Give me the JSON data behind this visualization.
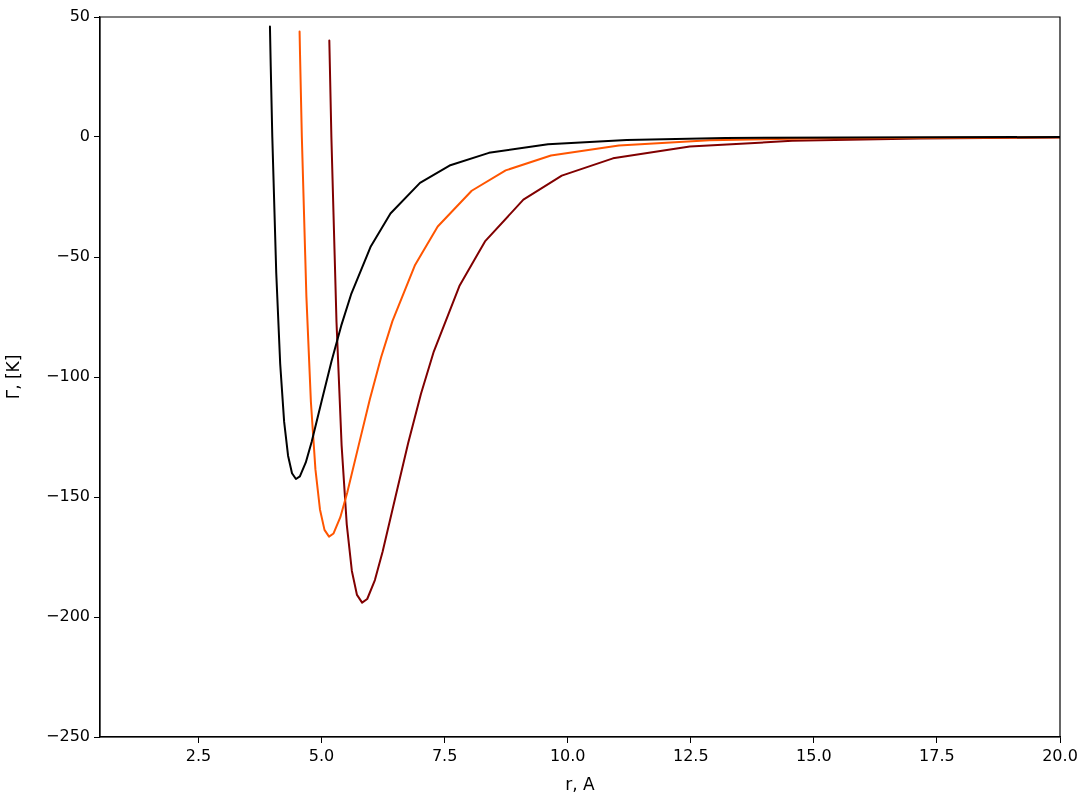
{
  "chart_data": {
    "type": "line",
    "xlabel": "r, A",
    "ylabel": "Γ, [K]",
    "xlim": [
      0.5,
      20
    ],
    "ylim": [
      -250,
      50
    ],
    "xticks": [
      2.5,
      {
        "value": 5,
        "label": "5.0"
      },
      7.5,
      {
        "value": 10,
        "label": "10.0"
      },
      12.5,
      {
        "value": 15,
        "label": "15.0"
      },
      17.5,
      {
        "value": 20,
        "label": "20.0"
      }
    ],
    "yticks": [
      {
        "value": -250,
        "label": "−250"
      },
      {
        "value": -200,
        "label": "−200"
      },
      {
        "value": -150,
        "label": "−150"
      },
      {
        "value": -100,
        "label": "−100"
      },
      {
        "value": -50,
        "label": "−50"
      },
      0,
      50
    ],
    "grid": false,
    "legend": false,
    "marker": "none",
    "line_style": "solid",
    "series": [
      {
        "color": "#000000",
        "x": [
          3.952,
          3.968,
          4.0,
          4.08,
          4.16,
          4.24,
          4.32,
          4.4,
          4.48,
          4.56,
          4.68,
          4.8,
          5.0,
          5.2,
          5.4,
          5.6,
          6.0,
          6.4,
          7.0,
          7.6,
          8.4,
          9.6,
          11.2,
          13.2,
          20
        ],
        "values": [
          46.0,
          29.5,
          0,
          -56.7,
          -94.5,
          -118.6,
          -132.8,
          -140.1,
          -142.5,
          -141.4,
          -135.6,
          -127.0,
          -110.2,
          -93.6,
          -78.6,
          -65.6,
          -45.6,
          -31.9,
          -19.1,
          -11.9,
          -6.6,
          -3.0,
          -1.2,
          -0.4,
          0.0
        ]
      },
      {
        "color": "#ff5500",
        "x": [
          4.554,
          4.563,
          4.6,
          4.692,
          4.784,
          4.876,
          4.968,
          5.06,
          5.152,
          5.244,
          5.382,
          5.52,
          5.75,
          5.98,
          6.21,
          6.44,
          6.9,
          7.36,
          8.05,
          8.74,
          9.66,
          11.04,
          12.88,
          15.18,
          20
        ],
        "values": [
          44.0,
          34.5,
          0,
          -66.3,
          -110.4,
          -138.5,
          -155.2,
          -163.7,
          -166.5,
          -165.2,
          -158.4,
          -148.3,
          -128.8,
          -109.4,
          -91.8,
          -76.7,
          -53.3,
          -37.3,
          -22.4,
          -13.9,
          -7.7,
          -3.5,
          -1.4,
          -0.5,
          -0.1
        ]
      },
      {
        "color": "#800000",
        "x": [
          5.158,
          5.2,
          5.304,
          5.408,
          5.512,
          5.616,
          5.72,
          5.824,
          5.928,
          6.084,
          6.24,
          6.5,
          6.76,
          7.02,
          7.28,
          7.8,
          8.32,
          9.1,
          9.88,
          10.92,
          12.48,
          14.56,
          17.16,
          20
        ],
        "values": [
          40.2,
          0,
          -77.2,
          -128.6,
          -161.4,
          -180.8,
          -190.8,
          -194.0,
          -192.5,
          -184.6,
          -172.8,
          -150.1,
          -127.5,
          -107.0,
          -89.4,
          -62.1,
          -43.5,
          -26.1,
          -16.1,
          -8.9,
          -4.0,
          -1.6,
          -0.6,
          -0.2
        ]
      }
    ]
  }
}
